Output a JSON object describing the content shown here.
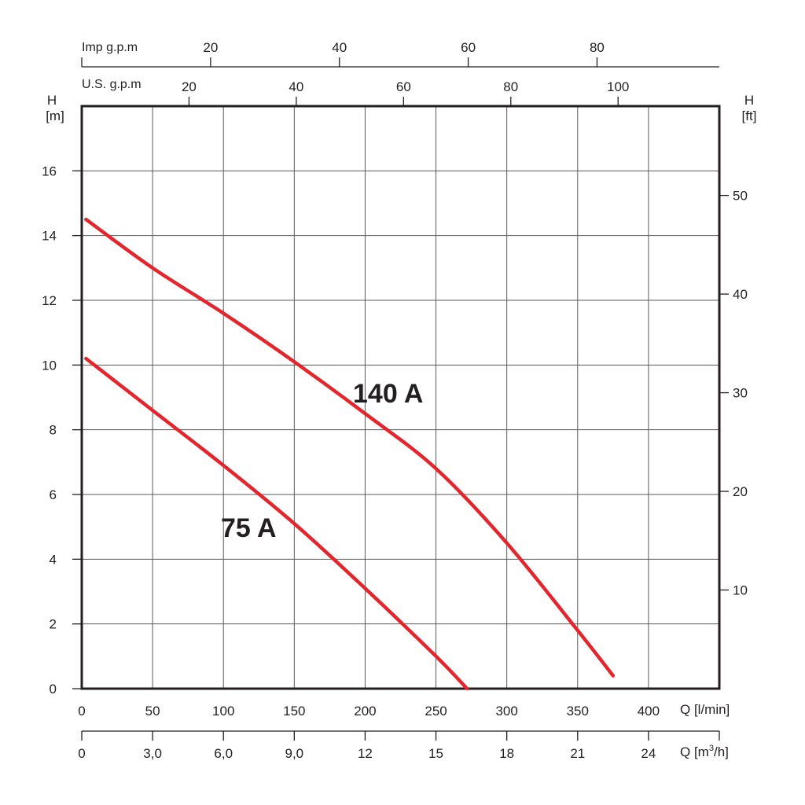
{
  "chart_data": {
    "type": "line",
    "title": "",
    "colors": {
      "curve": "#e3262d",
      "ink": "#231f20",
      "grid": "#5a5a5a"
    },
    "x_axis": {
      "label": "Q [l/min]",
      "range": [
        0,
        450
      ],
      "grid_step": 50,
      "ticks": [
        0,
        50,
        100,
        150,
        200,
        250,
        300,
        350,
        400
      ],
      "tick_labels": [
        "0",
        "50",
        "100",
        "150",
        "200",
        "250",
        "300",
        "350",
        "400"
      ]
    },
    "x_axis_m3h": {
      "label_prefix": "Q [m",
      "label_sup": "3",
      "label_suffix": "/h]",
      "ticks": [
        0,
        3,
        6,
        9,
        12,
        15,
        18,
        21,
        24,
        27
      ],
      "tick_labels": [
        "0",
        "3,0",
        "6,0",
        "9,0",
        "12",
        "15",
        "18",
        "21",
        "24",
        ""
      ]
    },
    "x_axis_us_gpm": {
      "label": "U.S. g.p.m",
      "ticks": [
        20,
        40,
        60,
        80,
        100
      ],
      "tick_labels": [
        "20",
        "40",
        "60",
        "80",
        "100"
      ]
    },
    "x_axis_imp_gpm": {
      "label": "Imp g.p.m",
      "ticks": [
        20,
        40,
        60,
        80
      ],
      "tick_labels": [
        "20",
        "40",
        "60",
        "80"
      ]
    },
    "y_axis": {
      "label_top": "H",
      "label_unit": "[m]",
      "range": [
        0,
        18
      ],
      "grid_step": 2,
      "ticks": [
        0,
        2,
        4,
        6,
        8,
        10,
        12,
        14,
        16
      ],
      "tick_labels": [
        "0",
        "2",
        "4",
        "6",
        "8",
        "10",
        "12",
        "14",
        "16"
      ]
    },
    "y_axis_ft": {
      "label_top": "H",
      "label_unit": "[ft]",
      "ticks": [
        10,
        20,
        30,
        40,
        50
      ],
      "tick_labels": [
        "10",
        "20",
        "30",
        "40",
        "50"
      ]
    },
    "grid": true,
    "series": [
      {
        "name": "140 A",
        "x": [
          3,
          50,
          100,
          150,
          200,
          250,
          300,
          350,
          375
        ],
        "y": [
          14.5,
          13.0,
          11.6,
          10.1,
          8.5,
          6.8,
          4.5,
          1.8,
          0.4
        ]
      },
      {
        "name": "75 A",
        "x": [
          3,
          50,
          100,
          150,
          200,
          250,
          272
        ],
        "y": [
          10.2,
          8.6,
          6.9,
          5.1,
          3.1,
          1.0,
          0.0
        ]
      }
    ]
  }
}
